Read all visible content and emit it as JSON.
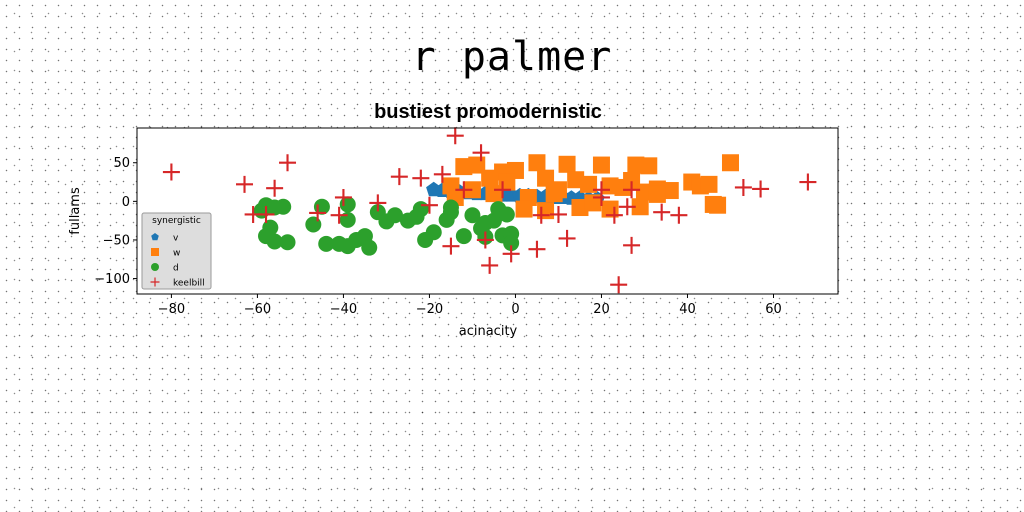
{
  "figure": {
    "suptitle": "r palmer"
  },
  "chart_data": {
    "type": "scatter",
    "title": "bustiest promodernistic",
    "xlabel": "acinacity",
    "ylabel": "fullams",
    "xlim": [
      -88,
      75
    ],
    "ylim": [
      -120,
      95
    ],
    "xticks": [
      -80,
      -60,
      -40,
      -20,
      0,
      20,
      40,
      60
    ],
    "yticks": [
      50,
      0,
      -50,
      -100
    ],
    "grid": false,
    "legend": {
      "title": "synergistic",
      "placement": "lower-left"
    },
    "series": [
      {
        "name": "v",
        "marker": "pentagon",
        "color": "#1f77b4",
        "points": [
          [
            -19,
            15
          ],
          [
            -17,
            14
          ],
          [
            -15,
            13
          ],
          [
            -13,
            12
          ],
          [
            -11,
            11
          ],
          [
            -9,
            10
          ],
          [
            -7,
            10
          ],
          [
            -5,
            9
          ],
          [
            -3,
            8
          ],
          [
            -1,
            8
          ],
          [
            1,
            7
          ],
          [
            3,
            7
          ],
          [
            5,
            6
          ],
          [
            7,
            6
          ],
          [
            9,
            5
          ],
          [
            11,
            5
          ],
          [
            13,
            4
          ],
          [
            15,
            4
          ],
          [
            17,
            3
          ],
          [
            19,
            3
          ]
        ]
      },
      {
        "name": "w",
        "marker": "square",
        "color": "#ff7f0e",
        "points": [
          [
            -12,
            45
          ],
          [
            -9,
            47
          ],
          [
            -6,
            30
          ],
          [
            -3,
            38
          ],
          [
            0,
            40
          ],
          [
            5,
            50
          ],
          [
            12,
            48
          ],
          [
            20,
            47
          ],
          [
            28,
            47
          ],
          [
            31,
            46
          ],
          [
            50,
            50
          ],
          [
            -15,
            20
          ],
          [
            -10,
            15
          ],
          [
            -5,
            10
          ],
          [
            -2,
            25
          ],
          [
            3,
            5
          ],
          [
            7,
            30
          ],
          [
            10,
            15
          ],
          [
            14,
            28
          ],
          [
            17,
            22
          ],
          [
            22,
            20
          ],
          [
            25,
            18
          ],
          [
            27,
            27
          ],
          [
            30,
            12
          ],
          [
            33,
            16
          ],
          [
            36,
            14
          ],
          [
            41,
            25
          ],
          [
            43,
            20
          ],
          [
            45,
            22
          ],
          [
            46,
            -4
          ],
          [
            47,
            -5
          ],
          [
            2,
            -10
          ],
          [
            7,
            -12
          ],
          [
            15,
            -8
          ],
          [
            22,
            -10
          ],
          [
            29,
            -7
          ],
          [
            33,
            9
          ],
          [
            -14,
            5
          ],
          [
            9,
            10
          ],
          [
            18,
            -2
          ]
        ]
      },
      {
        "name": "d",
        "marker": "circle",
        "color": "#2ca02c",
        "points": [
          [
            -58,
            -5
          ],
          [
            -56,
            -8
          ],
          [
            -54,
            -7
          ],
          [
            -58,
            -45
          ],
          [
            -56,
            -52
          ],
          [
            -53,
            -53
          ],
          [
            -57,
            -34
          ],
          [
            -59,
            -12
          ],
          [
            -47,
            -30
          ],
          [
            -45,
            -7
          ],
          [
            -44,
            -55
          ],
          [
            -41,
            -55
          ],
          [
            -39,
            -58
          ],
          [
            -37,
            -50
          ],
          [
            -35,
            -45
          ],
          [
            -34,
            -60
          ],
          [
            -39,
            -24
          ],
          [
            -39,
            -4
          ],
          [
            -32,
            -14
          ],
          [
            -30,
            -26
          ],
          [
            -28,
            -18
          ],
          [
            -25,
            -25
          ],
          [
            -23,
            -20
          ],
          [
            -22,
            -10
          ],
          [
            -21,
            -50
          ],
          [
            -19,
            -40
          ],
          [
            -16,
            -24
          ],
          [
            -15,
            -14
          ],
          [
            -15,
            -8
          ],
          [
            -12,
            -45
          ],
          [
            -10,
            -18
          ],
          [
            -8,
            -35
          ],
          [
            -7,
            -46
          ],
          [
            -5,
            -25
          ],
          [
            -4,
            -10
          ],
          [
            -3,
            -44
          ],
          [
            -2,
            -17
          ],
          [
            -1,
            -42
          ],
          [
            -1,
            -54
          ],
          [
            -7,
            -28
          ]
        ]
      },
      {
        "name": "keelbill",
        "marker": "plus",
        "color": "#d62728",
        "points": [
          [
            -80,
            38
          ],
          [
            -63,
            22
          ],
          [
            -61,
            -17
          ],
          [
            -58,
            -17
          ],
          [
            -56,
            17
          ],
          [
            -53,
            50
          ],
          [
            -46,
            -15
          ],
          [
            -40,
            5
          ],
          [
            -41,
            -18
          ],
          [
            -32,
            -2
          ],
          [
            -27,
            32
          ],
          [
            -22,
            30
          ],
          [
            -20,
            -5
          ],
          [
            -17,
            35
          ],
          [
            -15,
            -58
          ],
          [
            -14,
            85
          ],
          [
            -12,
            15
          ],
          [
            -8,
            63
          ],
          [
            -7,
            -50
          ],
          [
            -6,
            -83
          ],
          [
            -3,
            15
          ],
          [
            -1,
            -68
          ],
          [
            5,
            -62
          ],
          [
            6,
            -18
          ],
          [
            10,
            -17
          ],
          [
            12,
            -48
          ],
          [
            20,
            5
          ],
          [
            20,
            15
          ],
          [
            23,
            -18
          ],
          [
            24,
            -108
          ],
          [
            26,
            -7
          ],
          [
            27,
            15
          ],
          [
            27,
            -57
          ],
          [
            34,
            -14
          ],
          [
            38,
            -18
          ],
          [
            53,
            18
          ],
          [
            57,
            16
          ],
          [
            68,
            25
          ]
        ]
      }
    ]
  }
}
